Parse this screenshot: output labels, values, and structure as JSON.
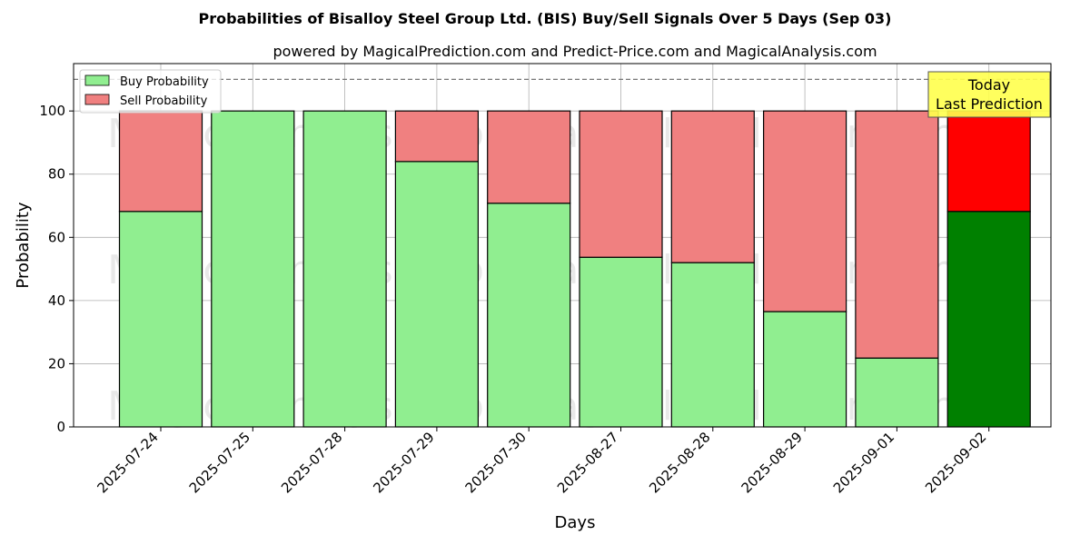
{
  "chart_data": {
    "type": "bar",
    "stacked": true,
    "title": "Probabilities of Bisalloy Steel Group Ltd. (BIS) Buy/Sell Signals Over 5 Days (Sep 03)",
    "subtitle": "powered by MagicalPrediction.com and Predict-Price.com and MagicalAnalysis.com",
    "xlabel": "Days",
    "ylabel": "Probability",
    "ylim": [
      0,
      115
    ],
    "yticks": [
      0,
      20,
      40,
      60,
      80,
      100
    ],
    "categories": [
      "2025-07-24",
      "2025-07-25",
      "2025-07-28",
      "2025-07-29",
      "2025-07-30",
      "2025-08-27",
      "2025-08-28",
      "2025-08-29",
      "2025-09-01",
      "2025-09-02"
    ],
    "series": [
      {
        "name": "Buy Probability",
        "values": [
          68.2,
          100,
          100,
          84.0,
          70.8,
          53.7,
          52.0,
          36.5,
          21.8,
          68.2
        ]
      },
      {
        "name": "Sell Probability",
        "values": [
          31.8,
          0,
          0,
          16.0,
          29.2,
          46.3,
          48.0,
          63.5,
          78.2,
          31.8
        ]
      }
    ],
    "colors": {
      "buy": "#90ee90",
      "sell": "#f08080",
      "buy_highlight": "#008000",
      "sell_highlight": "#ff0000",
      "annotation_bg": "#ffff4d"
    },
    "reference_line": 110,
    "grid": true,
    "legend_position": "top-left",
    "annotation": {
      "lines": [
        "Today",
        "Last Prediction"
      ]
    },
    "watermarks": [
      "MagicalAnalysis.com",
      "MagicalPrediction.com"
    ]
  }
}
